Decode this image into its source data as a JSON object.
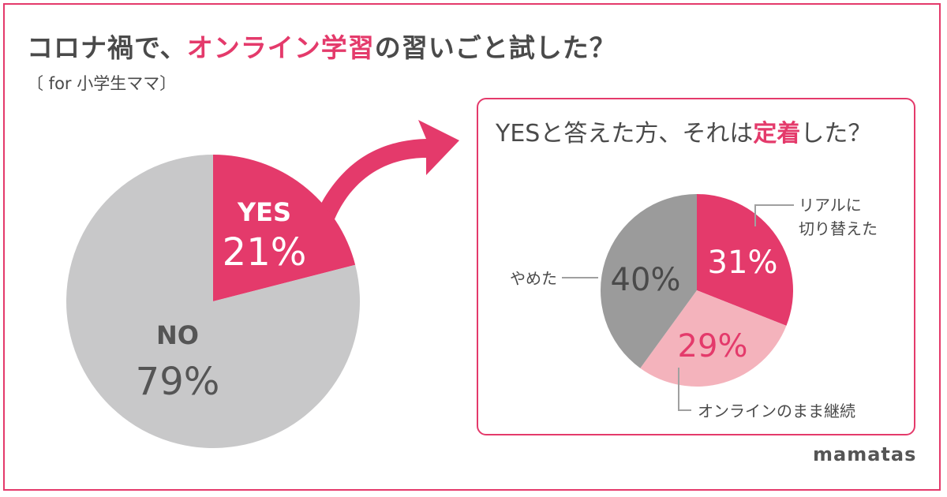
{
  "header": {
    "title_prefix": "コロナ禍で、",
    "title_accent": "オンライン学習",
    "title_suffix": "の習いごと試した？",
    "subtitle": "〔 for 小学生ママ〕"
  },
  "panel": {
    "title_prefix": "YESと答えた方、それは",
    "title_accent": "定着",
    "title_suffix": "した？"
  },
  "brand": "mamatas",
  "colors": {
    "accent": "#e43a6b",
    "light_pink": "#f4b3bc",
    "gray_light": "#c8c8c9",
    "gray_dark": "#9b9b9b",
    "text": "#4a4a4a"
  },
  "chart_data": [
    {
      "type": "pie",
      "slices": [
        {
          "label": "YES",
          "value": 21,
          "value_label": "21%",
          "color": "#e43a6b"
        },
        {
          "label": "NO",
          "value": 79,
          "value_label": "79%",
          "color": "#c8c8c9"
        }
      ]
    },
    {
      "type": "pie",
      "slices": [
        {
          "label": "リアルに\n切り替えた",
          "value": 31,
          "value_label": "31%",
          "color": "#e43a6b"
        },
        {
          "label": "オンラインのまま継続",
          "value": 29,
          "value_label": "29%",
          "color": "#f4b3bc"
        },
        {
          "label": "やめた",
          "value": 40,
          "value_label": "40%",
          "color": "#9b9b9b"
        }
      ]
    }
  ]
}
